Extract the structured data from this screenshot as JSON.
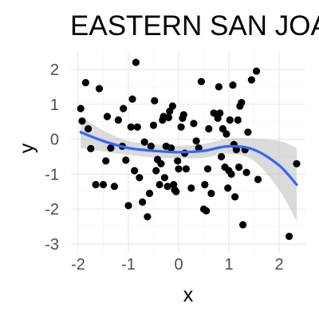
{
  "chart_data": {
    "type": "scatter",
    "title": "EASTERN SAN JOAQUIN",
    "xlabel": "x",
    "ylabel": "y",
    "xlim": [
      -2.05,
      2.4
    ],
    "ylim": [
      -3.1,
      2.55
    ],
    "x_ticks": [
      -2,
      -1,
      0,
      1,
      2
    ],
    "x_tick_labels": [
      "-2",
      "-1",
      "0",
      "1",
      "2"
    ],
    "y_ticks": [
      -3,
      -2,
      -1,
      0,
      1,
      2
    ],
    "y_tick_labels": [
      "-3",
      "-2",
      "-1",
      "0",
      "1",
      "2"
    ],
    "grid": true,
    "point_color": "#000000",
    "smooth_color": "#3366FF",
    "band_color": "#BEBEBE",
    "points": [
      {
        "x": -1.95,
        "y": 0.88
      },
      {
        "x": -1.92,
        "y": 0.52
      },
      {
        "x": -1.85,
        "y": 1.62
      },
      {
        "x": -1.8,
        "y": 0.3
      },
      {
        "x": -1.75,
        "y": -0.27
      },
      {
        "x": -1.65,
        "y": -1.3
      },
      {
        "x": -1.58,
        "y": 1.45
      },
      {
        "x": -1.5,
        "y": -1.3
      },
      {
        "x": -1.45,
        "y": -0.62
      },
      {
        "x": -1.42,
        "y": 0.65
      },
      {
        "x": -1.35,
        "y": -0.25
      },
      {
        "x": -1.28,
        "y": -1.35
      },
      {
        "x": -1.2,
        "y": 0.55
      },
      {
        "x": -1.12,
        "y": -0.2
      },
      {
        "x": -1.1,
        "y": 0.88
      },
      {
        "x": -1.05,
        "y": -0.6
      },
      {
        "x": -1.0,
        "y": -1.9
      },
      {
        "x": -0.95,
        "y": 0.35
      },
      {
        "x": -0.92,
        "y": 1.15
      },
      {
        "x": -0.88,
        "y": -0.9
      },
      {
        "x": -0.85,
        "y": 2.2
      },
      {
        "x": -0.82,
        "y": 0.35
      },
      {
        "x": -0.78,
        "y": -1.1
      },
      {
        "x": -0.72,
        "y": -1.8
      },
      {
        "x": -0.68,
        "y": -0.08
      },
      {
        "x": -0.62,
        "y": -2.22
      },
      {
        "x": -0.58,
        "y": -1.55
      },
      {
        "x": -0.55,
        "y": -0.2
      },
      {
        "x": -0.5,
        "y": 0.4
      },
      {
        "x": -0.48,
        "y": 1.1
      },
      {
        "x": -0.45,
        "y": -0.9
      },
      {
        "x": -0.42,
        "y": -0.58
      },
      {
        "x": -0.38,
        "y": -1.3
      },
      {
        "x": -0.35,
        "y": -0.7
      },
      {
        "x": -0.32,
        "y": 0.55
      },
      {
        "x": -0.3,
        "y": 0.65
      },
      {
        "x": -0.28,
        "y": -1.1
      },
      {
        "x": -0.25,
        "y": -0.2
      },
      {
        "x": -0.22,
        "y": -1.35
      },
      {
        "x": -0.2,
        "y": 0.62
      },
      {
        "x": -0.18,
        "y": 0.8
      },
      {
        "x": -0.15,
        "y": -0.25
      },
      {
        "x": -0.12,
        "y": 0.95
      },
      {
        "x": -0.1,
        "y": -1.3
      },
      {
        "x": -0.08,
        "y": -1.45
      },
      {
        "x": -0.05,
        "y": -1.5
      },
      {
        "x": -0.02,
        "y": -0.62
      },
      {
        "x": 0.0,
        "y": -0.85
      },
      {
        "x": 0.05,
        "y": 0.35
      },
      {
        "x": 0.08,
        "y": 0.6
      },
      {
        "x": 0.1,
        "y": 0.7
      },
      {
        "x": 0.12,
        "y": -0.4
      },
      {
        "x": 0.15,
        "y": -0.85
      },
      {
        "x": 0.25,
        "y": -1.4
      },
      {
        "x": 0.3,
        "y": 0.45
      },
      {
        "x": 0.35,
        "y": -0.05
      },
      {
        "x": 0.4,
        "y": -0.25
      },
      {
        "x": 0.45,
        "y": 1.65
      },
      {
        "x": 0.5,
        "y": -2.0
      },
      {
        "x": 0.52,
        "y": -1.3
      },
      {
        "x": 0.55,
        "y": -2.05
      },
      {
        "x": 0.58,
        "y": -0.85
      },
      {
        "x": 0.6,
        "y": 0.3
      },
      {
        "x": 0.65,
        "y": -1.55
      },
      {
        "x": 0.7,
        "y": 0.75
      },
      {
        "x": 0.78,
        "y": 0.6
      },
      {
        "x": 0.8,
        "y": 1.5
      },
      {
        "x": 0.82,
        "y": 0.75
      },
      {
        "x": 0.85,
        "y": -0.5
      },
      {
        "x": 0.88,
        "y": 0.3
      },
      {
        "x": 0.92,
        "y": -0.8
      },
      {
        "x": 0.95,
        "y": 0.15
      },
      {
        "x": 0.98,
        "y": -1.4
      },
      {
        "x": 1.0,
        "y": -0.9
      },
      {
        "x": 1.02,
        "y": 0.55
      },
      {
        "x": 1.05,
        "y": -1.0
      },
      {
        "x": 1.08,
        "y": 1.55
      },
      {
        "x": 1.1,
        "y": -0.15
      },
      {
        "x": 1.12,
        "y": -1.65
      },
      {
        "x": 1.15,
        "y": -0.3
      },
      {
        "x": 1.18,
        "y": 0.55
      },
      {
        "x": 1.2,
        "y": -0.8
      },
      {
        "x": 1.22,
        "y": 0.95
      },
      {
        "x": 1.25,
        "y": 1.05
      },
      {
        "x": 1.28,
        "y": -2.45
      },
      {
        "x": 1.32,
        "y": -0.3
      },
      {
        "x": 1.35,
        "y": -0.95
      },
      {
        "x": 1.38,
        "y": 0.2
      },
      {
        "x": 1.45,
        "y": 1.7
      },
      {
        "x": 1.55,
        "y": 1.95
      },
      {
        "x": 1.58,
        "y": -1.15
      },
      {
        "x": 2.2,
        "y": -2.78
      },
      {
        "x": 2.35,
        "y": -0.7
      }
    ],
    "smooth": [
      {
        "x": -1.95,
        "y": 0.2,
        "lower": -0.25,
        "upper": 0.65
      },
      {
        "x": -1.5,
        "y": -0.05,
        "lower": -0.35,
        "upper": 0.25
      },
      {
        "x": -1.0,
        "y": -0.25,
        "lower": -0.45,
        "upper": -0.05
      },
      {
        "x": -0.5,
        "y": -0.33,
        "lower": -0.52,
        "upper": -0.14
      },
      {
        "x": 0.0,
        "y": -0.37,
        "lower": -0.55,
        "upper": -0.19
      },
      {
        "x": 0.5,
        "y": -0.33,
        "lower": -0.53,
        "upper": -0.13
      },
      {
        "x": 1.0,
        "y": -0.2,
        "lower": -0.42,
        "upper": 0.02
      },
      {
        "x": 1.5,
        "y": -0.3,
        "lower": -0.62,
        "upper": 0.02
      },
      {
        "x": 2.0,
        "y": -0.75,
        "lower": -1.45,
        "upper": -0.05
      },
      {
        "x": 2.35,
        "y": -1.3,
        "lower": -2.35,
        "upper": -0.25
      }
    ]
  }
}
